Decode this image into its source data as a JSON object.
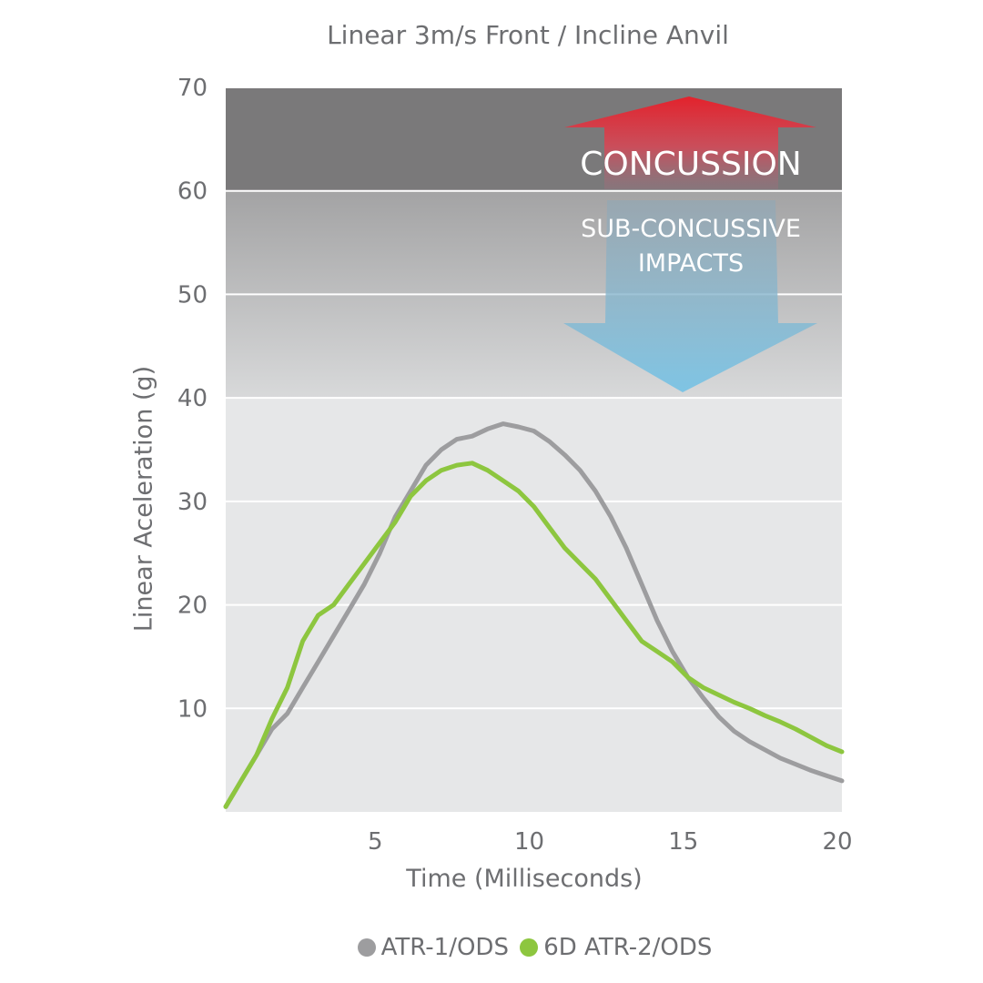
{
  "chart_data": {
    "type": "line",
    "title": "Linear 3m/s Front / Incline Anvil",
    "xlabel": "Time (Milliseconds)",
    "ylabel": "Linear Aceleration (g)",
    "xlim": [
      0,
      20
    ],
    "ylim": [
      0,
      70
    ],
    "xticks": [
      5,
      10,
      15,
      20
    ],
    "yticks": [
      10,
      20,
      30,
      40,
      50,
      60,
      70
    ],
    "grid": true,
    "legend_position": "bottom",
    "zones": {
      "concussion": {
        "label": "CONCUSSION",
        "from": 60,
        "to": 70,
        "color": "#7a797a"
      },
      "sub_concussive": {
        "label_line1": "SUB-CONCUSSIVE",
        "label_line2": "IMPACTS",
        "from": 40,
        "to": 60,
        "color_top": "#a3a3a4",
        "color_bottom": "#d8d9da"
      },
      "background": "#e6e7e8"
    },
    "series": [
      {
        "name": "ATR-1/ODS",
        "color": "#9d9d9f",
        "x": [
          0,
          0.5,
          1,
          1.5,
          2,
          2.5,
          3,
          3.5,
          4,
          4.5,
          5,
          5.5,
          6,
          6.5,
          7,
          7.5,
          8,
          8.5,
          9,
          9.5,
          10,
          10.5,
          11,
          11.5,
          12,
          12.5,
          13,
          13.5,
          14,
          14.5,
          15,
          15.5,
          16,
          16.5,
          17,
          17.5,
          18,
          18.5,
          19,
          19.5,
          20
        ],
        "values": [
          0.5,
          3,
          5.5,
          8,
          9.5,
          12,
          14.5,
          17,
          19.5,
          22,
          25,
          28.5,
          31,
          33.5,
          35,
          36,
          36.3,
          37,
          37.5,
          37.2,
          36.8,
          35.8,
          34.5,
          33,
          31,
          28.5,
          25.5,
          22,
          18.5,
          15.5,
          13,
          11,
          9.2,
          7.8,
          6.8,
          6,
          5.2,
          4.6,
          4,
          3.5,
          3
        ]
      },
      {
        "name": "6D ATR-2/ODS",
        "color": "#8dc63f",
        "x": [
          0,
          0.5,
          1,
          1.5,
          2,
          2.5,
          3,
          3.5,
          4,
          4.5,
          5,
          5.5,
          6,
          6.5,
          7,
          7.5,
          8,
          8.5,
          9,
          9.5,
          10,
          10.5,
          11,
          11.5,
          12,
          12.5,
          13,
          13.5,
          14,
          14.5,
          15,
          15.5,
          16,
          16.5,
          17,
          17.5,
          18,
          18.5,
          19,
          19.5,
          20
        ],
        "values": [
          0.5,
          3,
          5.5,
          9,
          12,
          16.5,
          19,
          20,
          22,
          24,
          26,
          28,
          30.5,
          32,
          33,
          33.5,
          33.7,
          33,
          32,
          31,
          29.5,
          27.5,
          25.5,
          24,
          22.5,
          20.5,
          18.5,
          16.5,
          15.5,
          14.5,
          13,
          12,
          11.3,
          10.6,
          10,
          9.3,
          8.7,
          8,
          7.2,
          6.4,
          5.8
        ]
      }
    ]
  }
}
